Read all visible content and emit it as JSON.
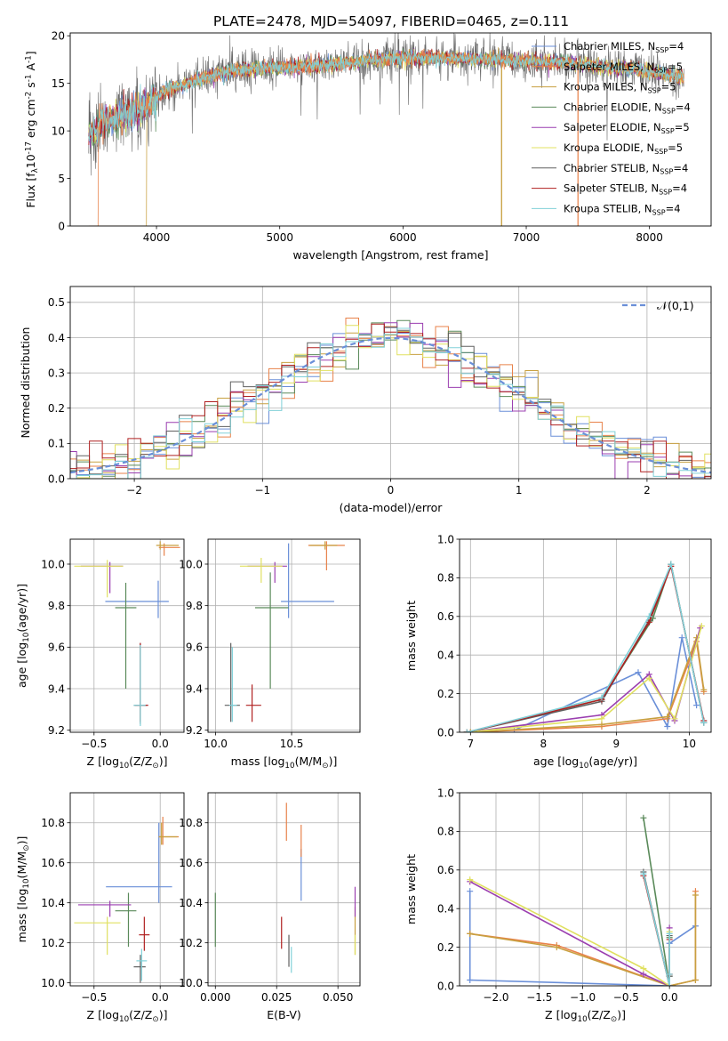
{
  "figure_title": "PLATE=2478, MJD=54097, FIBERID=0465, z=0.111",
  "series_names": [
    "Chabrier MILES, N$_{SSP}$=4",
    "Salpeter MILES, N$_{SSP}$=5",
    "Kroupa MILES, N$_{SSP}$=5",
    "Chabrier ELODIE, N$_{SSP}$=4",
    "Salpeter ELODIE, N$_{SSP}$=5",
    "Kroupa ELODIE, N$_{SSP}$=5",
    "Chabrier STELIB, N$_{SSP}$=4",
    "Salpeter STELIB, N$_{SSP}$=4",
    "Kroupa STELIB, N$_{SSP}$=4"
  ],
  "colors": [
    "#6a8fd8",
    "#e8824a",
    "#c8a040",
    "#5a8a5a",
    "#9b3fb0",
    "#e0e060",
    "#606060",
    "#b02020",
    "#80d0d8"
  ],
  "chart_data": [
    {
      "id": "spectrum",
      "type": "line",
      "title": "PLATE=2478, MJD=54097, FIBERID=0465, z=0.111",
      "xlabel": "wavelength [Angstrom, rest frame]",
      "ylabel": "Flux [f$_\\lambda$10$^{-17}$ erg cm$^{-2}$ s$^{-1}$ A$^{-1}$]",
      "xlim": [
        3300,
        8500
      ],
      "ylim": [
        0,
        20.3
      ],
      "xticks": [
        4000,
        5000,
        6000,
        7000,
        8000
      ],
      "yticks": [
        0,
        5,
        10,
        15,
        20
      ],
      "grid": false,
      "legend": "upper-right",
      "continuum": {
        "x": [
          3450,
          3550,
          3650,
          3750,
          3850,
          3950,
          4050,
          4150,
          4250,
          4350,
          4500,
          4700,
          4900,
          5100,
          5300,
          5500,
          5700,
          5900,
          6100,
          6300,
          6500,
          6700,
          6900,
          7100,
          7300,
          7500,
          7700,
          7900,
          8100,
          8280
        ],
        "y": [
          9.5,
          10.8,
          11.3,
          11.7,
          12.2,
          12.8,
          14.0,
          14.6,
          15.0,
          15.4,
          16.0,
          16.4,
          16.6,
          16.7,
          16.9,
          17.1,
          17.4,
          17.6,
          17.7,
          17.7,
          17.6,
          17.5,
          17.4,
          17.3,
          17.2,
          16.9,
          16.6,
          16.4,
          16.0,
          15.6
        ]
      },
      "spectrum_range": [
        3450,
        8280
      ],
      "model_drop_to_zero": [
        {
          "series": "Salpeter MILES, N$_{SSP}$=5",
          "x_start": 3530,
          "x_end": 7420
        },
        {
          "series": "Kroupa MILES, N$_{SSP}$=5",
          "x_start": 3920,
          "x_end": 6800
        }
      ]
    },
    {
      "id": "residuals",
      "type": "line",
      "xlabel": "(data-model)/error",
      "ylabel": "Normed distribution",
      "xlim": [
        -2.5,
        2.5
      ],
      "ylim": [
        0,
        0.545
      ],
      "xticks": [
        -2,
        -1,
        0,
        1,
        2
      ],
      "yticks": [
        0.0,
        0.1,
        0.2,
        0.3,
        0.4,
        0.5
      ],
      "grid": true,
      "legend": "upper-right",
      "legend_label": "$\\mathcal{N}(0,1)$",
      "bin_width": 0.1,
      "histogram": "step"
    },
    {
      "id": "age_vs_Z",
      "type": "scatter",
      "xlabel": "Z [log$_{10}$(Z/Z$_\\odot$)]",
      "ylabel": "age  [log$_{10}$(age/yr)]",
      "xlim": [
        -0.68,
        0.18
      ],
      "ylim": [
        9.19,
        10.12
      ],
      "xticks": [
        -0.5,
        0.0
      ],
      "yticks": [
        9.2,
        9.4,
        9.6,
        9.8,
        10.0
      ],
      "grid": true,
      "points": [
        {
          "s": 0,
          "x": -0.015,
          "y": 9.82,
          "xerr": [
            0.4,
            0.08
          ],
          "yerr": [
            0.08,
            0.1
          ]
        },
        {
          "s": 1,
          "x": 0.03,
          "y": 10.08,
          "xerr": [
            0.04,
            0.12
          ],
          "yerr": [
            0.04,
            0.02
          ]
        },
        {
          "s": 2,
          "x": 0.0,
          "y": 10.09,
          "xerr": [
            0.03,
            0.14
          ],
          "yerr": [
            0.02,
            0.02
          ]
        },
        {
          "s": 3,
          "x": -0.26,
          "y": 9.79,
          "xerr": [
            0.08,
            0.08
          ],
          "yerr": [
            0.39,
            0.12
          ]
        },
        {
          "s": 4,
          "x": -0.38,
          "y": 9.99,
          "xerr": [
            0.22,
            0.1
          ],
          "yerr": [
            0.13,
            0.02
          ]
        },
        {
          "s": 5,
          "x": -0.4,
          "y": 9.99,
          "xerr": [
            0.25,
            0.12
          ],
          "yerr": [
            0.15,
            0.03
          ]
        },
        {
          "s": 6,
          "x": -0.15,
          "y": 9.32,
          "xerr": [
            0.05,
            0.05
          ],
          "yerr": [
            0.09,
            0.3
          ]
        },
        {
          "s": 7,
          "x": -0.15,
          "y": 9.32,
          "xerr": [
            0.04,
            0.06
          ],
          "yerr": [
            0.08,
            0.3
          ]
        },
        {
          "s": 8,
          "x": -0.15,
          "y": 9.32,
          "xerr": [
            0.05,
            0.04
          ],
          "yerr": [
            0.1,
            0.29
          ]
        }
      ]
    },
    {
      "id": "age_vs_mass",
      "type": "scatter",
      "xlabel": "mass [log$_{10}$(M/M$_\\odot$)]",
      "ylabel": "",
      "xlim": [
        9.95,
        10.95
      ],
      "ylim": [
        9.19,
        10.12
      ],
      "xticks": [
        10.0,
        10.5
      ],
      "yticks": [
        9.2,
        9.4,
        9.6,
        9.8,
        10.0
      ],
      "grid": true,
      "points": [
        {
          "s": 0,
          "x": 10.48,
          "y": 9.82,
          "xerr": [
            0.05,
            0.3
          ],
          "yerr": [
            0.08,
            0.28
          ]
        },
        {
          "s": 1,
          "x": 10.73,
          "y": 10.09,
          "xerr": [
            0.12,
            0.12
          ],
          "yerr": [
            0.12,
            0.02
          ]
        },
        {
          "s": 2,
          "x": 10.72,
          "y": 10.09,
          "xerr": [
            0.1,
            0.08
          ],
          "yerr": [
            0.02,
            0.02
          ]
        },
        {
          "s": 3,
          "x": 10.36,
          "y": 9.79,
          "xerr": [
            0.1,
            0.12
          ],
          "yerr": [
            0.39,
            0.17
          ]
        },
        {
          "s": 4,
          "x": 10.39,
          "y": 9.99,
          "xerr": [
            0.18,
            0.08
          ],
          "yerr": [
            0.08,
            0.02
          ]
        },
        {
          "s": 5,
          "x": 10.3,
          "y": 9.99,
          "xerr": [
            0.14,
            0.14
          ],
          "yerr": [
            0.08,
            0.04
          ]
        },
        {
          "s": 6,
          "x": 10.1,
          "y": 9.32,
          "xerr": [
            0.04,
            0.06
          ],
          "yerr": [
            0.08,
            0.3
          ]
        },
        {
          "s": 7,
          "x": 10.24,
          "y": 9.32,
          "xerr": [
            0.04,
            0.06
          ],
          "yerr": [
            0.08,
            0.1
          ]
        },
        {
          "s": 8,
          "x": 10.11,
          "y": 9.32,
          "xerr": [
            0.02,
            0.03
          ],
          "yerr": [
            0.08,
            0.28
          ]
        }
      ]
    },
    {
      "id": "massweight_vs_age",
      "type": "line",
      "xlabel": "age  [log$_{10}$(age/yr)]",
      "ylabel": "mass weight",
      "xlim": [
        6.85,
        10.3
      ],
      "ylim": [
        0,
        1.0
      ],
      "xticks": [
        7,
        8,
        9,
        10
      ],
      "yticks": [
        0.0,
        0.2,
        0.4,
        0.6,
        0.8,
        1.0
      ],
      "grid": true,
      "series": [
        {
          "s": 0,
          "x": [
            7.6,
            9.3,
            9.7,
            9.9,
            10.1
          ],
          "y": [
            0.01,
            0.31,
            0.03,
            0.49,
            0.14
          ]
        },
        {
          "s": 1,
          "x": [
            7.0,
            8.8,
            9.7,
            10.1,
            10.2
          ],
          "y": [
            0.0,
            0.03,
            0.07,
            0.47,
            0.21
          ]
        },
        {
          "s": 2,
          "x": [
            7.0,
            8.8,
            9.7,
            10.1,
            10.2
          ],
          "y": [
            0.0,
            0.04,
            0.08,
            0.49,
            0.22
          ]
        },
        {
          "s": 3,
          "x": [
            6.95,
            8.8,
            9.5,
            9.75,
            10.2
          ],
          "y": [
            0.0,
            0.17,
            0.59,
            0.87,
            0.05
          ]
        },
        {
          "s": 4,
          "x": [
            6.95,
            8.8,
            9.45,
            9.8,
            10.15
          ],
          "y": [
            0.0,
            0.09,
            0.3,
            0.06,
            0.54
          ]
        },
        {
          "s": 5,
          "x": [
            6.95,
            8.8,
            9.45,
            9.8,
            10.17
          ],
          "y": [
            0.0,
            0.07,
            0.28,
            0.07,
            0.55
          ]
        },
        {
          "s": 6,
          "x": [
            6.95,
            8.8,
            9.45,
            9.75,
            10.2
          ],
          "y": [
            0.0,
            0.16,
            0.58,
            0.87,
            0.05
          ]
        },
        {
          "s": 7,
          "x": [
            6.95,
            8.8,
            9.45,
            9.75,
            10.2
          ],
          "y": [
            0.0,
            0.17,
            0.57,
            0.86,
            0.06
          ]
        },
        {
          "s": 8,
          "x": [
            6.95,
            8.8,
            9.45,
            9.75,
            10.2
          ],
          "y": [
            0.0,
            0.18,
            0.6,
            0.87,
            0.05
          ]
        }
      ]
    },
    {
      "id": "mass_vs_Z",
      "type": "scatter",
      "xlabel": "Z [log$_{10}$(Z/Z$_\\odot$)]",
      "ylabel": "mass [log$_{10}$(M/M$_\\odot$)]",
      "xlim": [
        -0.68,
        0.18
      ],
      "ylim": [
        9.985,
        10.95
      ],
      "xticks": [
        -0.5,
        0.0
      ],
      "yticks": [
        10.0,
        10.2,
        10.4,
        10.6,
        10.8
      ],
      "grid": true,
      "points": [
        {
          "s": 0,
          "x": -0.01,
          "y": 10.48,
          "xerr": [
            0.4,
            0.1
          ],
          "yerr": [
            0.08,
            0.32
          ]
        },
        {
          "s": 1,
          "x": 0.02,
          "y": 10.73,
          "xerr": [
            0.03,
            0.12
          ],
          "yerr": [
            0.04,
            0.1
          ]
        },
        {
          "s": 2,
          "x": 0.01,
          "y": 10.73,
          "xerr": [
            0.02,
            0.12
          ],
          "yerr": [
            0.04,
            0.07
          ]
        },
        {
          "s": 3,
          "x": -0.24,
          "y": 10.36,
          "xerr": [
            0.1,
            0.06
          ],
          "yerr": [
            0.18,
            0.09
          ]
        },
        {
          "s": 4,
          "x": -0.38,
          "y": 10.39,
          "xerr": [
            0.24,
            0.16
          ],
          "yerr": [
            0.06,
            0.02
          ]
        },
        {
          "s": 5,
          "x": -0.4,
          "y": 10.3,
          "xerr": [
            0.25,
            0.1
          ],
          "yerr": [
            0.16,
            0.03
          ]
        },
        {
          "s": 6,
          "x": -0.15,
          "y": 10.08,
          "xerr": [
            0.05,
            0.04
          ],
          "yerr": [
            0.08,
            0.06
          ]
        },
        {
          "s": 7,
          "x": -0.12,
          "y": 10.24,
          "xerr": [
            0.04,
            0.04
          ],
          "yerr": [
            0.08,
            0.09
          ]
        },
        {
          "s": 8,
          "x": -0.14,
          "y": 10.11,
          "xerr": [
            0.04,
            0.04
          ],
          "yerr": [
            0.1,
            0.06
          ]
        }
      ]
    },
    {
      "id": "mass_vs_ebv",
      "type": "scatter",
      "xlabel": "E(B-V)",
      "ylabel": "",
      "xlim": [
        -0.003,
        0.059
      ],
      "ylim": [
        9.985,
        10.95
      ],
      "xticks": [
        0.0,
        0.025,
        0.05
      ],
      "yticks": [
        10.0,
        10.2,
        10.4,
        10.6,
        10.8
      ],
      "grid": true,
      "points": [
        {
          "s": 0,
          "x": 0.035,
          "y": 10.48,
          "xerr": [
            0,
            0
          ],
          "yerr": [
            0.07,
            0.19
          ]
        },
        {
          "s": 1,
          "x": 0.035,
          "y": 10.73,
          "xerr": [
            0,
            0
          ],
          "yerr": [
            0.1,
            0.06
          ]
        },
        {
          "s": 2,
          "x": 0.057,
          "y": 10.3,
          "xerr": [
            0,
            0
          ],
          "yerr": [
            0.16,
            0.08
          ]
        },
        {
          "s": 3,
          "x": 0.0,
          "y": 10.3,
          "xerr": [
            0,
            0
          ],
          "yerr": [
            0.12,
            0.15
          ]
        },
        {
          "s": 4,
          "x": 0.057,
          "y": 10.39,
          "xerr": [
            0,
            0
          ],
          "yerr": [
            0.06,
            0.09
          ]
        },
        {
          "s": 5,
          "x": 0.057,
          "y": 10.2,
          "xerr": [
            0,
            0
          ],
          "yerr": [
            0.06,
            0.04
          ]
        },
        {
          "s": 6,
          "x": 0.03,
          "y": 10.16,
          "xerr": [
            0,
            0
          ],
          "yerr": [
            0.08,
            0.08
          ]
        },
        {
          "s": 7,
          "x": 0.027,
          "y": 10.25,
          "xerr": [
            0,
            0
          ],
          "yerr": [
            0.08,
            0.08
          ]
        },
        {
          "s": 8,
          "x": 0.031,
          "y": 10.12,
          "xerr": [
            0,
            0
          ],
          "yerr": [
            0.07,
            0.06
          ]
        },
        {
          "s": 1,
          "x": 0.029,
          "y": 10.8,
          "xerr": [
            0,
            0
          ],
          "yerr": [
            0.09,
            0.1
          ]
        }
      ]
    },
    {
      "id": "massweight_vs_Z",
      "type": "line",
      "xlabel": "Z [log$_{10}$(Z/Z$_\\odot$)]",
      "ylabel": "mass weight",
      "xlim": [
        -2.42,
        0.48
      ],
      "ylim": [
        0,
        1.0
      ],
      "xticks": [
        -2.0,
        -1.5,
        -1.0,
        -0.5,
        0.0
      ],
      "yticks": [
        0.0,
        0.2,
        0.4,
        0.6,
        0.8,
        1.0
      ],
      "grid": true,
      "series": [
        {
          "s": 0,
          "x": [
            -2.3,
            -2.3,
            0.0,
            0.0,
            0.3
          ],
          "y": [
            0.49,
            0.03,
            0.0,
            0.22,
            0.31
          ]
        },
        {
          "s": 1,
          "x": [
            -2.3,
            -1.3,
            0.0,
            0.0,
            0.3,
            0.3
          ],
          "y": [
            0.27,
            0.21,
            0.0,
            0.0,
            0.03,
            0.49
          ]
        },
        {
          "s": 2,
          "x": [
            -2.3,
            -1.3,
            0.0,
            0.0,
            0.3,
            0.3
          ],
          "y": [
            0.27,
            0.2,
            0.0,
            0.0,
            0.03,
            0.47
          ]
        },
        {
          "s": 3,
          "x": [
            -0.3,
            0.0,
            0.0,
            0.0
          ],
          "y": [
            0.87,
            0.0,
            0.25,
            0.05
          ]
        },
        {
          "s": 4,
          "x": [
            -2.3,
            -0.3,
            0.0,
            0.0
          ],
          "y": [
            0.54,
            0.06,
            0.0,
            0.3
          ]
        },
        {
          "s": 5,
          "x": [
            -2.3,
            -0.3,
            0.0,
            0.0
          ],
          "y": [
            0.55,
            0.09,
            0.0,
            0.28
          ]
        },
        {
          "s": 6,
          "x": [
            -0.3,
            0.0,
            0.0,
            0.0
          ],
          "y": [
            0.59,
            0.0,
            0.26,
            0.05
          ]
        },
        {
          "s": 7,
          "x": [
            -0.3,
            0.0,
            0.0,
            0.0
          ],
          "y": [
            0.57,
            0.0,
            0.24,
            0.06
          ]
        },
        {
          "s": 8,
          "x": [
            -0.3,
            0.0,
            0.0,
            0.0
          ],
          "y": [
            0.58,
            0.0,
            0.27,
            0.06
          ]
        }
      ]
    }
  ]
}
